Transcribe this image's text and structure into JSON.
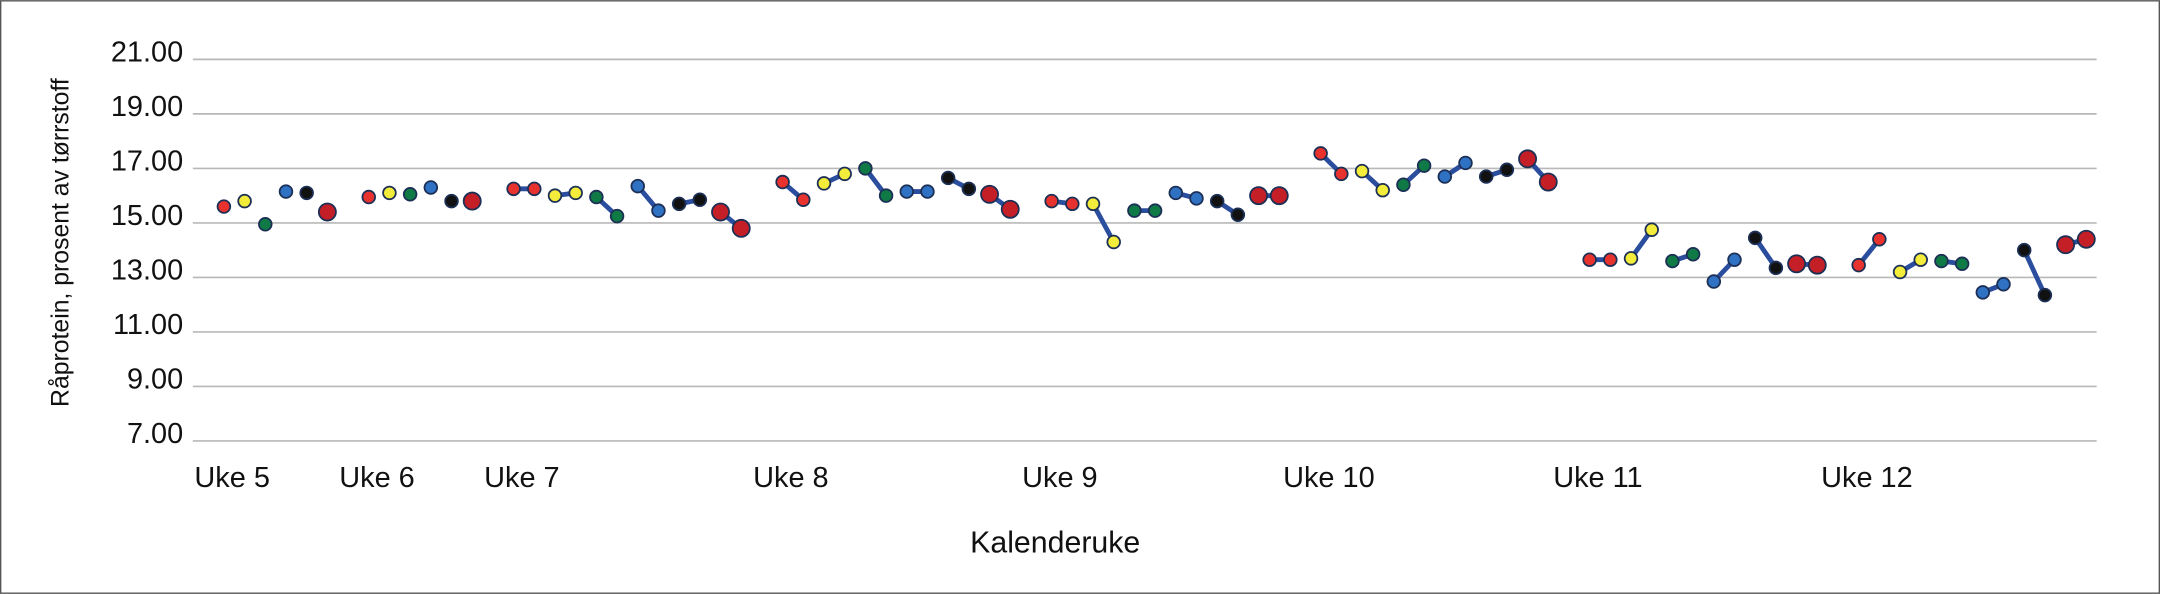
{
  "chart_data": {
    "type": "line",
    "y_label": "Råprotein, prosent av tørrstoff",
    "x_label": "Kalenderuke",
    "ylim": [
      7,
      21
    ],
    "yticks": [
      {
        "value": 7,
        "label": "7.00"
      },
      {
        "value": 9,
        "label": "9.00"
      },
      {
        "value": 11,
        "label": "11.00"
      },
      {
        "value": 13,
        "label": "13.00"
      },
      {
        "value": 15,
        "label": "15.00"
      },
      {
        "value": 17,
        "label": "17.00"
      },
      {
        "value": 19,
        "label": "19.00"
      },
      {
        "value": 21,
        "label": "21.00"
      }
    ],
    "xlim": [
      -0.5,
      91.5
    ],
    "xticks": [
      {
        "value": 1,
        "label": "Uke 5"
      },
      {
        "value": 8,
        "label": "Uke 6"
      },
      {
        "value": 15,
        "label": "Uke 7"
      },
      {
        "value": 28,
        "label": "Uke 8"
      },
      {
        "value": 41,
        "label": "Uke 9"
      },
      {
        "value": 54,
        "label": "Uke 10"
      },
      {
        "value": 67,
        "label": "Uke 11"
      },
      {
        "value": 80,
        "label": "Uke 12"
      }
    ],
    "grid": true,
    "line_color": "#2b4d9e",
    "series": [
      {
        "color": "#e8322e",
        "x": [
          1,
          null,
          8,
          null,
          15,
          16,
          null,
          28,
          29,
          null,
          41,
          42,
          null,
          54,
          55,
          null,
          67,
          68,
          null,
          80,
          81
        ],
        "values": [
          15.6,
          null,
          15.95,
          null,
          16.25,
          16.25,
          null,
          16.5,
          15.85,
          null,
          15.8,
          15.7,
          null,
          17.55,
          16.8,
          null,
          13.65,
          13.65,
          null,
          13.45,
          14.4
        ]
      },
      {
        "color": "#f3ec3a",
        "x": [
          2,
          null,
          9,
          null,
          17,
          18,
          null,
          30,
          31,
          null,
          43,
          44,
          null,
          56,
          57,
          null,
          69,
          70,
          null,
          82,
          83
        ],
        "values": [
          15.8,
          null,
          16.1,
          null,
          16.0,
          16.1,
          null,
          16.45,
          16.8,
          null,
          15.7,
          14.3,
          null,
          16.9,
          16.2,
          null,
          13.7,
          14.75,
          null,
          13.2,
          13.65
        ]
      },
      {
        "color": "#0f7a46",
        "x": [
          3,
          null,
          10,
          null,
          19,
          20,
          null,
          32,
          33,
          null,
          45,
          46,
          null,
          58,
          59,
          null,
          71,
          72,
          null,
          84,
          85
        ],
        "values": [
          14.95,
          null,
          16.05,
          null,
          15.95,
          15.25,
          null,
          17.0,
          16.0,
          null,
          15.45,
          15.45,
          null,
          16.4,
          17.1,
          null,
          13.6,
          13.85,
          null,
          13.6,
          13.5
        ]
      },
      {
        "color": "#2f72c4",
        "x": [
          4,
          null,
          11,
          null,
          21,
          22,
          null,
          34,
          35,
          null,
          47,
          48,
          null,
          60,
          61,
          null,
          73,
          74,
          null,
          86,
          87
        ],
        "values": [
          16.15,
          null,
          16.3,
          null,
          16.35,
          15.45,
          null,
          16.15,
          16.15,
          null,
          16.1,
          15.9,
          null,
          16.7,
          17.2,
          null,
          12.85,
          13.65,
          null,
          12.45,
          12.75
        ]
      },
      {
        "color": "#111111",
        "x": [
          5,
          null,
          12,
          null,
          23,
          24,
          null,
          36,
          37,
          null,
          49,
          50,
          null,
          62,
          63,
          null,
          75,
          76,
          null,
          88,
          89
        ],
        "values": [
          16.1,
          null,
          15.8,
          null,
          15.7,
          15.85,
          null,
          16.65,
          16.25,
          null,
          15.8,
          15.3,
          null,
          16.7,
          16.95,
          null,
          14.45,
          13.35,
          null,
          14.0,
          12.35
        ]
      },
      {
        "color": "#c41f27",
        "x": [
          6,
          null,
          13,
          null,
          25,
          26,
          null,
          38,
          39,
          null,
          51,
          52,
          null,
          64,
          65,
          null,
          77,
          78,
          null,
          90,
          91
        ],
        "values": [
          15.4,
          null,
          15.8,
          null,
          15.4,
          14.8,
          null,
          16.05,
          15.5,
          null,
          16.0,
          16.0,
          null,
          17.35,
          16.5,
          null,
          13.5,
          13.45,
          null,
          14.2,
          14.4
        ]
      }
    ]
  }
}
